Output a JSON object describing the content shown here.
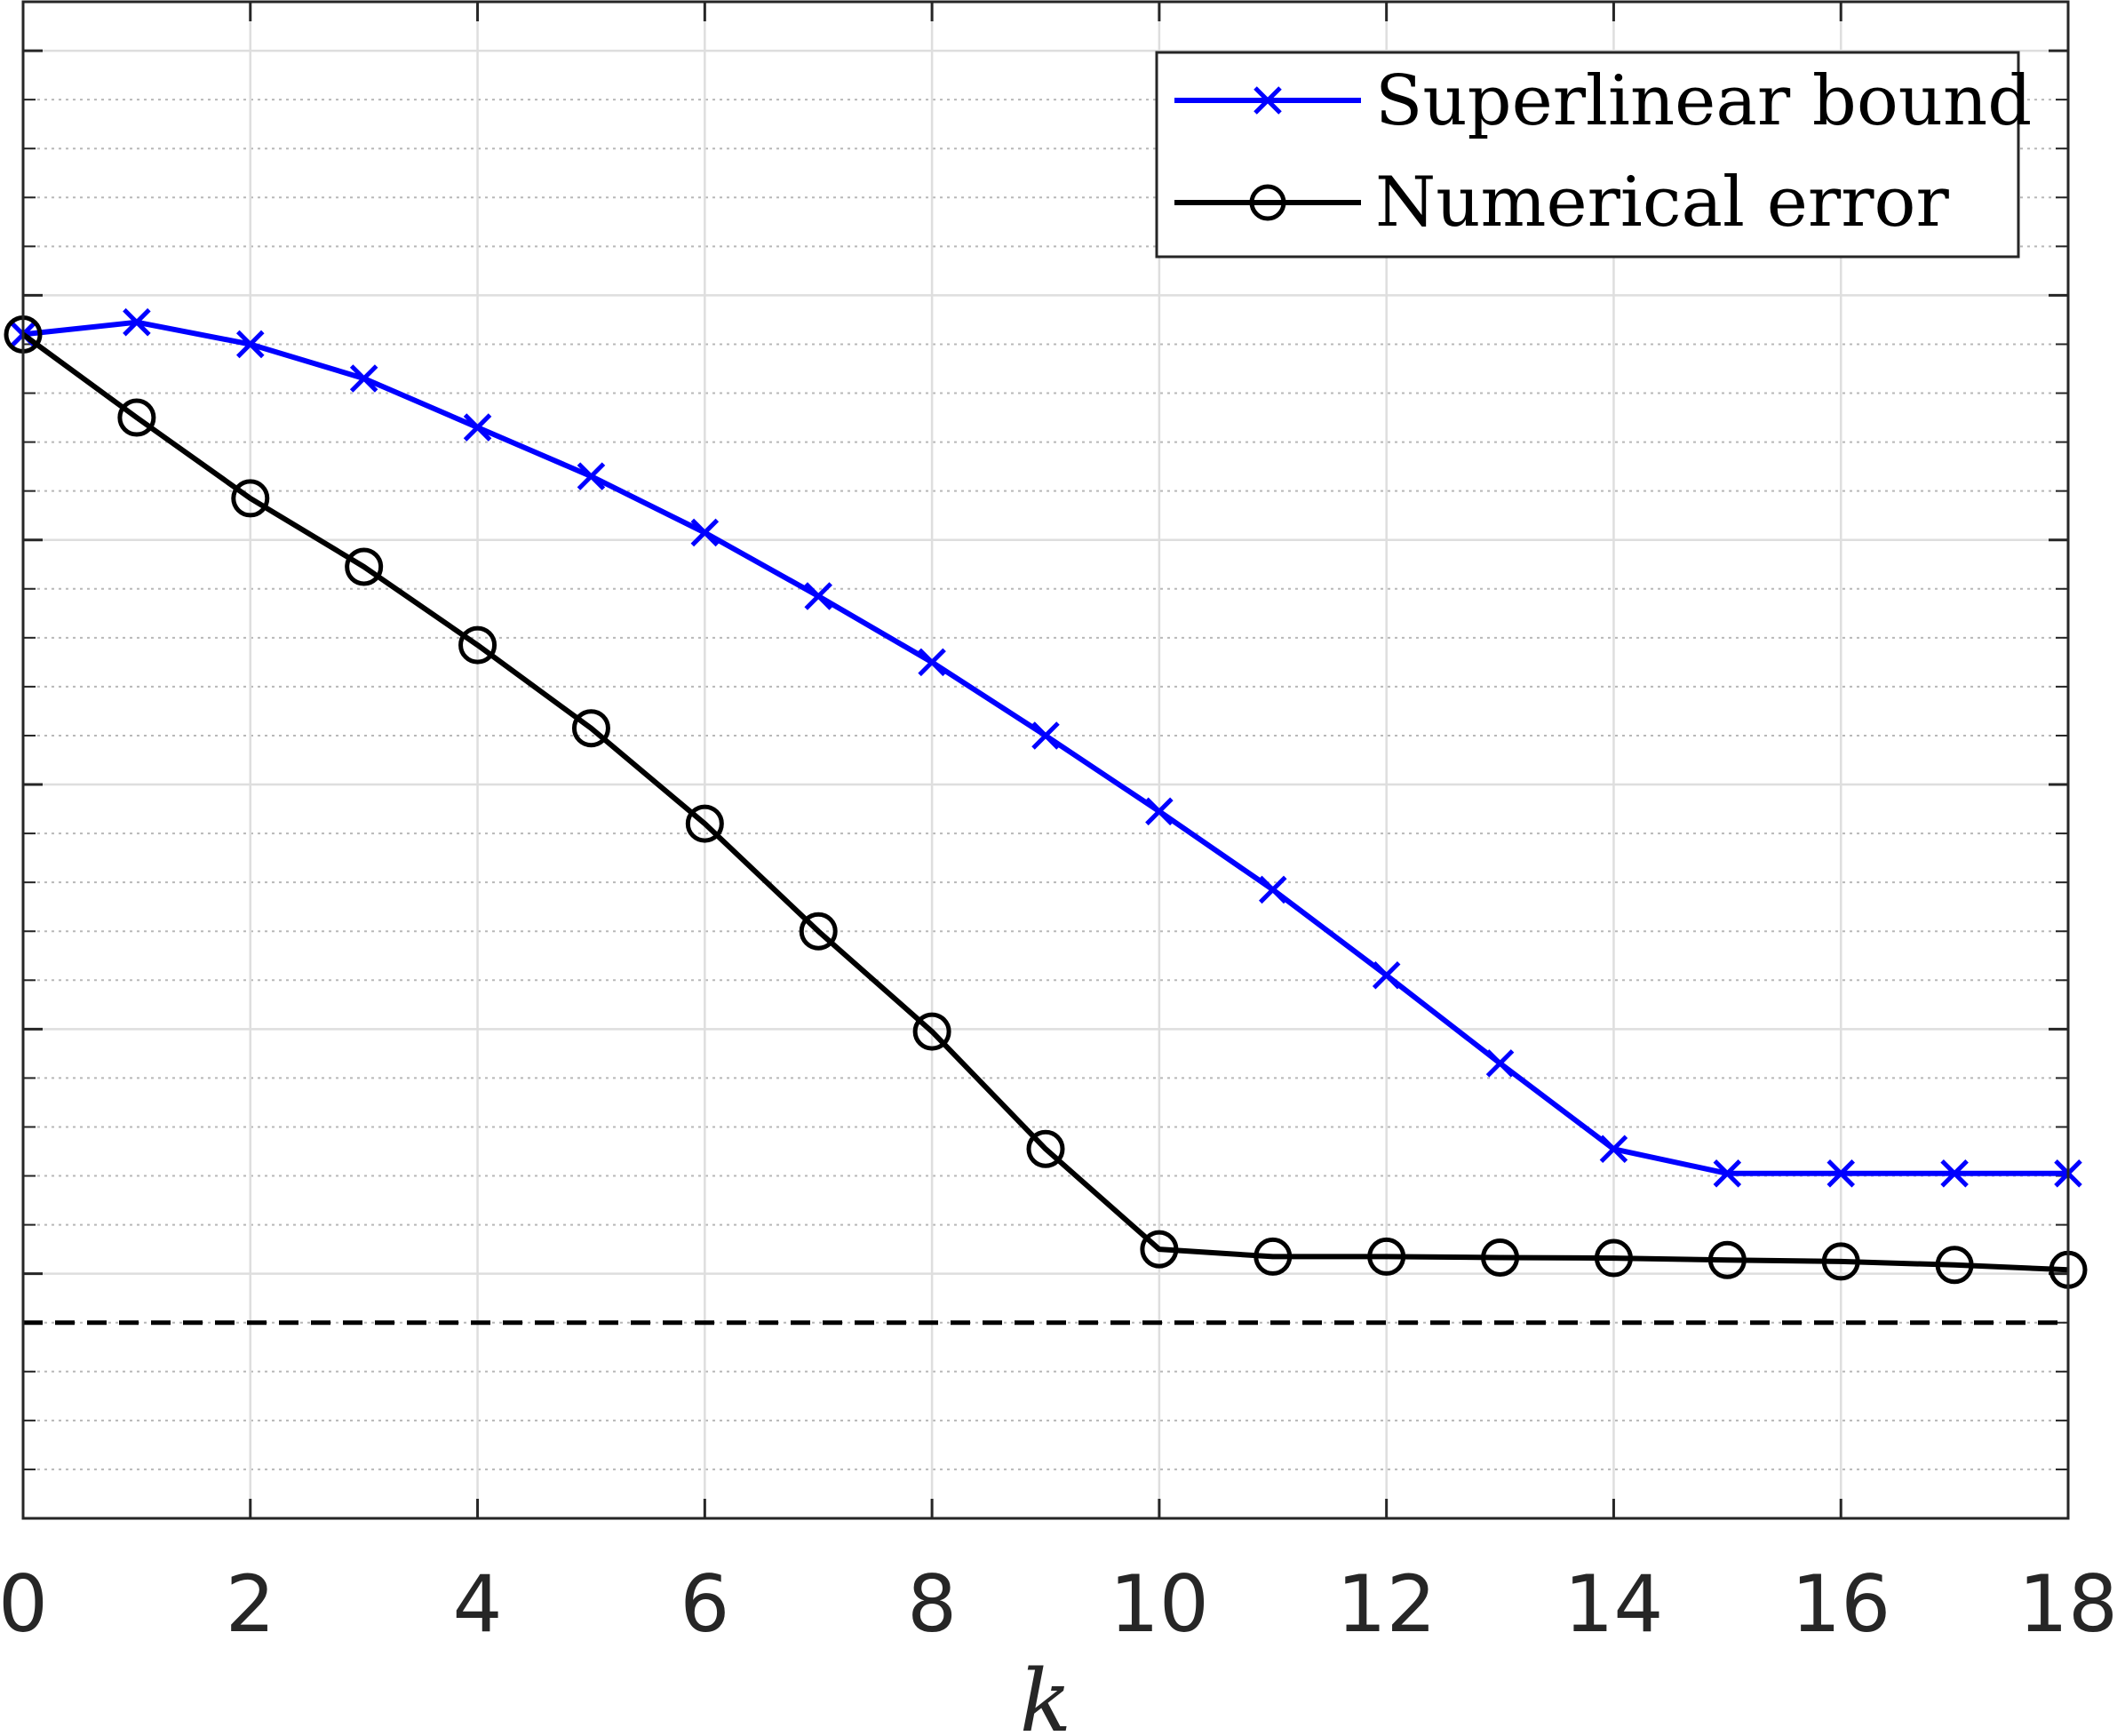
{
  "chart_data": {
    "type": "line",
    "xlabel": "k",
    "ylabel": "",
    "title": "",
    "xlim": [
      0,
      18
    ],
    "ylim": [
      0,
      31
    ],
    "y_scale": "unlabeled",
    "xticks": [
      0,
      2,
      4,
      6,
      8,
      10,
      12,
      14,
      16,
      18
    ],
    "yticks_major": [
      0,
      5,
      10,
      15,
      20,
      25,
      30
    ],
    "grid": true,
    "minor_grid": true,
    "legend_position": "top-right",
    "series": [
      {
        "name": "Superlinear bound",
        "color": "#0000ff",
        "marker": "x",
        "x": [
          0,
          1,
          2,
          3,
          4,
          5,
          6,
          7,
          8,
          9,
          10,
          11,
          12,
          13,
          14,
          15,
          16,
          17,
          18
        ],
        "y": [
          24.2,
          24.45,
          24.0,
          23.3,
          22.3,
          21.3,
          20.15,
          18.85,
          17.5,
          16.0,
          14.45,
          12.85,
          11.1,
          9.3,
          7.55,
          7.05,
          7.05,
          7.05,
          7.05
        ]
      },
      {
        "name": "Numerical error",
        "color": "#000000",
        "marker": "o",
        "x": [
          0,
          1,
          2,
          3,
          4,
          5,
          6,
          7,
          8,
          9,
          10,
          11,
          12,
          13,
          14,
          15,
          16,
          17,
          18
        ],
        "y": [
          24.2,
          22.5,
          20.85,
          19.45,
          17.85,
          16.15,
          14.2,
          12.0,
          9.95,
          7.55,
          5.5,
          5.35,
          5.35,
          5.33,
          5.32,
          5.28,
          5.25,
          5.18,
          5.08
        ]
      }
    ],
    "reference_lines": [
      {
        "orientation": "horizontal",
        "y": 4.0,
        "style": "dashed",
        "color": "#000000"
      }
    ]
  }
}
